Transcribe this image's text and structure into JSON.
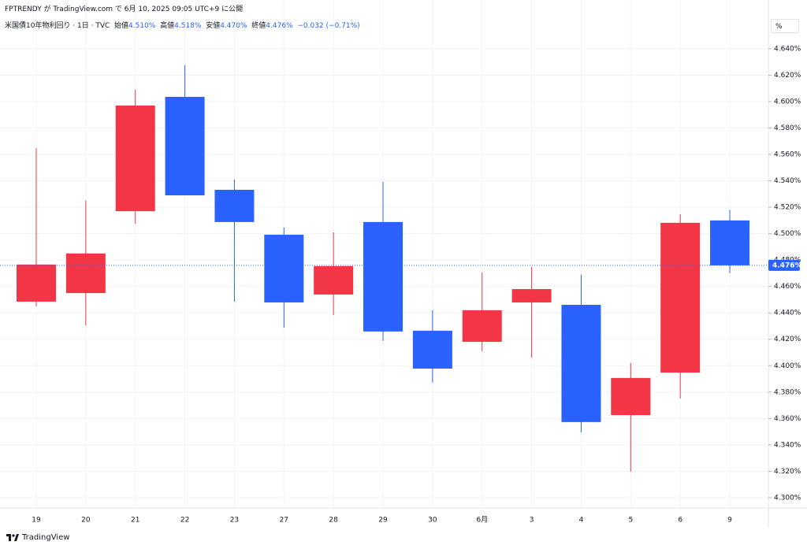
{
  "header": {
    "published": "FPTRENDY が TradingView.com で 6月 10, 2025 09:05 UTC+9 に公開"
  },
  "legend": {
    "symbol": "米国債10年物利回り · 1日 · TVC",
    "open_label": "始値",
    "open": "4.510%",
    "high_label": "高値",
    "high": "4.518%",
    "low_label": "安値",
    "low": "4.470%",
    "close_label": "終値",
    "close": "4.476%",
    "change": "−0.032 (−0.71%)"
  },
  "unit_button": "%",
  "footer": {
    "brand": "TradingView"
  },
  "chart_data": {
    "type": "candlestick",
    "categories": [
      "19",
      "20",
      "21",
      "22",
      "23",
      "27",
      "28",
      "29",
      "30",
      "6月",
      "3",
      "4",
      "5",
      "6",
      "9"
    ],
    "open": [
      4.4485,
      4.455,
      4.517,
      4.6036,
      4.5332,
      4.4992,
      4.4539,
      4.5088,
      4.4265,
      4.4181,
      4.4479,
      4.4461,
      4.3626,
      4.3948,
      4.51
    ],
    "high": [
      4.5648,
      4.525,
      4.609,
      4.6275,
      4.541,
      4.5046,
      4.501,
      4.5392,
      4.442,
      4.4706,
      4.4748,
      4.4688,
      4.402,
      4.5147,
      4.518
    ],
    "low": [
      4.445,
      4.4306,
      4.5076,
      4.529,
      4.4485,
      4.4288,
      4.4384,
      4.4187,
      4.3871,
      4.411,
      4.4062,
      4.3495,
      4.3197,
      4.3752,
      4.47
    ],
    "close": [
      4.4766,
      4.485,
      4.597,
      4.529,
      4.5088,
      4.4479,
      4.4754,
      4.4259,
      4.3978,
      4.442,
      4.458,
      4.3573,
      4.3907,
      4.5082,
      4.476
    ],
    "up_color": "#f23645",
    "down_color": "#2962ff",
    "ylim": [
      4.2922,
      4.665
    ],
    "yticks": [
      {
        "value": 4.3,
        "label": "4.300%"
      },
      {
        "value": 4.32,
        "label": "4.320%"
      },
      {
        "value": 4.34,
        "label": "4.340%"
      },
      {
        "value": 4.36,
        "label": "4.360%"
      },
      {
        "value": 4.38,
        "label": "4.380%"
      },
      {
        "value": 4.4,
        "label": "4.400%"
      },
      {
        "value": 4.42,
        "label": "4.420%"
      },
      {
        "value": 4.44,
        "label": "4.440%"
      },
      {
        "value": 4.46,
        "label": "4.460%"
      },
      {
        "value": 4.48,
        "label": "4.480%"
      },
      {
        "value": 4.5,
        "label": "4.500%"
      },
      {
        "value": 4.52,
        "label": "4.520%"
      },
      {
        "value": 4.54,
        "label": "4.540%"
      },
      {
        "value": 4.56,
        "label": "4.560%"
      },
      {
        "value": 4.58,
        "label": "4.580%"
      },
      {
        "value": 4.6,
        "label": "4.600%"
      },
      {
        "value": 4.62,
        "label": "4.620%"
      },
      {
        "value": 4.64,
        "label": "4.640%"
      }
    ],
    "last_price": {
      "value": 4.476,
      "label": "4.476%"
    },
    "grid": true
  }
}
